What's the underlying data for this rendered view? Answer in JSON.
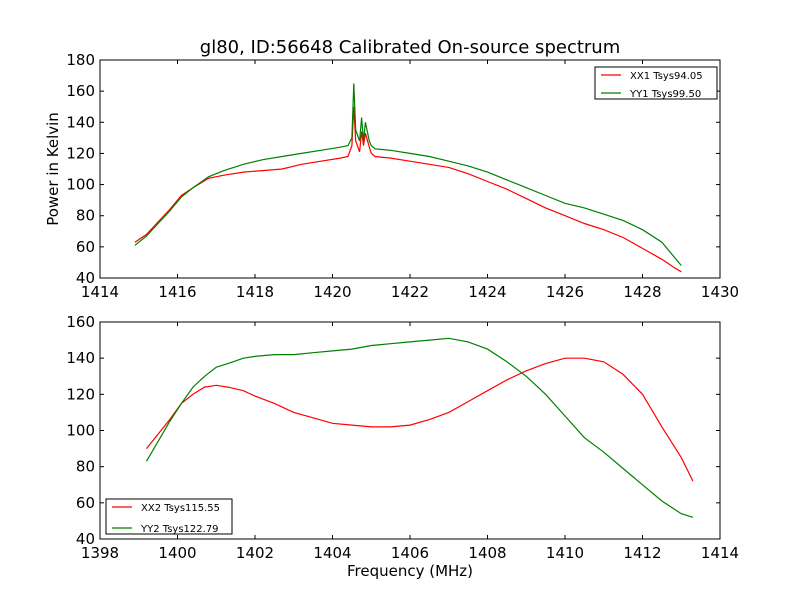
{
  "figure": {
    "title": "gl80, ID:56648 Calibrated On-source spectrum",
    "background": "#ffffff"
  },
  "chart_data": [
    {
      "type": "line",
      "title": "gl80, ID:56648 Calibrated On-source spectrum",
      "xlabel": "",
      "ylabel": "Power in Kelvin",
      "xlim": [
        1414,
        1430
      ],
      "ylim": [
        40,
        180
      ],
      "xticks": [
        1414,
        1416,
        1418,
        1420,
        1422,
        1424,
        1426,
        1428,
        1430
      ],
      "yticks": [
        40,
        60,
        80,
        100,
        120,
        140,
        160,
        180
      ],
      "grid": false,
      "legend_position": "top-right",
      "series": [
        {
          "name": "XX1 Tsys94.05",
          "color": "#ff0000",
          "points": [
            [
              1414.9,
              63
            ],
            [
              1415.2,
              68
            ],
            [
              1415.5,
              76
            ],
            [
              1415.8,
              84
            ],
            [
              1416.1,
              93
            ],
            [
              1416.4,
              98
            ],
            [
              1416.8,
              104
            ],
            [
              1417.2,
              106
            ],
            [
              1417.7,
              108
            ],
            [
              1418.2,
              109
            ],
            [
              1418.7,
              110
            ],
            [
              1419.2,
              113
            ],
            [
              1419.7,
              115
            ],
            [
              1420.2,
              117
            ],
            [
              1420.4,
              118
            ],
            [
              1420.5,
              125
            ],
            [
              1420.55,
              150
            ],
            [
              1420.6,
              128
            ],
            [
              1420.7,
              121
            ],
            [
              1420.75,
              134
            ],
            [
              1420.8,
              125
            ],
            [
              1420.85,
              133
            ],
            [
              1420.95,
              124
            ],
            [
              1421.0,
              120
            ],
            [
              1421.1,
              118
            ],
            [
              1421.5,
              117
            ],
            [
              1422.0,
              115
            ],
            [
              1422.5,
              113
            ],
            [
              1423.0,
              111
            ],
            [
              1423.5,
              107
            ],
            [
              1424.0,
              102
            ],
            [
              1424.5,
              97
            ],
            [
              1425.0,
              91
            ],
            [
              1425.5,
              85
            ],
            [
              1426.0,
              80
            ],
            [
              1426.5,
              75
            ],
            [
              1427.0,
              71
            ],
            [
              1427.5,
              66
            ],
            [
              1428.0,
              59
            ],
            [
              1428.5,
              52
            ],
            [
              1428.8,
              47
            ],
            [
              1429.0,
              44
            ]
          ]
        },
        {
          "name": "YY1 Tsys99.50",
          "color": "#008000",
          "points": [
            [
              1414.9,
              61
            ],
            [
              1415.2,
              67
            ],
            [
              1415.5,
              75
            ],
            [
              1415.8,
              83
            ],
            [
              1416.1,
              92
            ],
            [
              1416.4,
              98
            ],
            [
              1416.8,
              105
            ],
            [
              1417.2,
              109
            ],
            [
              1417.7,
              113
            ],
            [
              1418.2,
              116
            ],
            [
              1418.7,
              118
            ],
            [
              1419.2,
              120
            ],
            [
              1419.7,
              122
            ],
            [
              1420.2,
              124
            ],
            [
              1420.4,
              125
            ],
            [
              1420.5,
              130
            ],
            [
              1420.55,
              165
            ],
            [
              1420.6,
              135
            ],
            [
              1420.7,
              128
            ],
            [
              1420.75,
              143
            ],
            [
              1420.8,
              128
            ],
            [
              1420.85,
              140
            ],
            [
              1420.95,
              128
            ],
            [
              1421.0,
              125
            ],
            [
              1421.1,
              123
            ],
            [
              1421.5,
              122
            ],
            [
              1422.0,
              120
            ],
            [
              1422.5,
              118
            ],
            [
              1423.0,
              115
            ],
            [
              1423.5,
              112
            ],
            [
              1424.0,
              108
            ],
            [
              1424.5,
              103
            ],
            [
              1425.0,
              98
            ],
            [
              1425.5,
              93
            ],
            [
              1426.0,
              88
            ],
            [
              1426.5,
              85
            ],
            [
              1427.0,
              81
            ],
            [
              1427.5,
              77
            ],
            [
              1428.0,
              71
            ],
            [
              1428.5,
              63
            ],
            [
              1428.8,
              54
            ],
            [
              1429.0,
              48
            ]
          ]
        }
      ]
    },
    {
      "type": "line",
      "title": "",
      "xlabel": "Frequency (MHz)",
      "ylabel": "",
      "xlim": [
        1398,
        1414
      ],
      "ylim": [
        40,
        160
      ],
      "xticks": [
        1398,
        1400,
        1402,
        1404,
        1406,
        1408,
        1410,
        1412,
        1414
      ],
      "yticks": [
        40,
        60,
        80,
        100,
        120,
        140,
        160
      ],
      "grid": false,
      "legend_position": "bottom-left",
      "series": [
        {
          "name": "XX2 Tsys115.55",
          "color": "#ff0000",
          "points": [
            [
              1399.2,
              90
            ],
            [
              1399.5,
              98
            ],
            [
              1399.8,
              106
            ],
            [
              1400.1,
              115
            ],
            [
              1400.4,
              120
            ],
            [
              1400.7,
              124
            ],
            [
              1401.0,
              125
            ],
            [
              1401.3,
              124
            ],
            [
              1401.7,
              122
            ],
            [
              1402.0,
              119
            ],
            [
              1402.5,
              115
            ],
            [
              1403.0,
              110
            ],
            [
              1403.5,
              107
            ],
            [
              1404.0,
              104
            ],
            [
              1404.5,
              103
            ],
            [
              1405.0,
              102
            ],
            [
              1405.5,
              102
            ],
            [
              1406.0,
              103
            ],
            [
              1406.5,
              106
            ],
            [
              1407.0,
              110
            ],
            [
              1407.5,
              116
            ],
            [
              1408.0,
              122
            ],
            [
              1408.5,
              128
            ],
            [
              1409.0,
              133
            ],
            [
              1409.5,
              137
            ],
            [
              1410.0,
              140
            ],
            [
              1410.5,
              140
            ],
            [
              1411.0,
              138
            ],
            [
              1411.5,
              131
            ],
            [
              1412.0,
              120
            ],
            [
              1412.5,
              102
            ],
            [
              1413.0,
              85
            ],
            [
              1413.3,
              72
            ]
          ]
        },
        {
          "name": "YY2 Tsys122.79",
          "color": "#008000",
          "points": [
            [
              1399.2,
              83
            ],
            [
              1399.5,
              94
            ],
            [
              1399.8,
              105
            ],
            [
              1400.1,
              115
            ],
            [
              1400.4,
              124
            ],
            [
              1400.7,
              130
            ],
            [
              1401.0,
              135
            ],
            [
              1401.3,
              137
            ],
            [
              1401.7,
              140
            ],
            [
              1402.0,
              141
            ],
            [
              1402.5,
              142
            ],
            [
              1403.0,
              142
            ],
            [
              1403.5,
              143
            ],
            [
              1404.0,
              144
            ],
            [
              1404.5,
              145
            ],
            [
              1405.0,
              147
            ],
            [
              1405.5,
              148
            ],
            [
              1406.0,
              149
            ],
            [
              1406.5,
              150
            ],
            [
              1407.0,
              151
            ],
            [
              1407.5,
              149
            ],
            [
              1408.0,
              145
            ],
            [
              1408.5,
              138
            ],
            [
              1409.0,
              130
            ],
            [
              1409.5,
              120
            ],
            [
              1410.0,
              108
            ],
            [
              1410.5,
              96
            ],
            [
              1411.0,
              88
            ],
            [
              1411.5,
              79
            ],
            [
              1412.0,
              70
            ],
            [
              1412.5,
              61
            ],
            [
              1413.0,
              54
            ],
            [
              1413.3,
              52
            ]
          ]
        }
      ]
    }
  ]
}
